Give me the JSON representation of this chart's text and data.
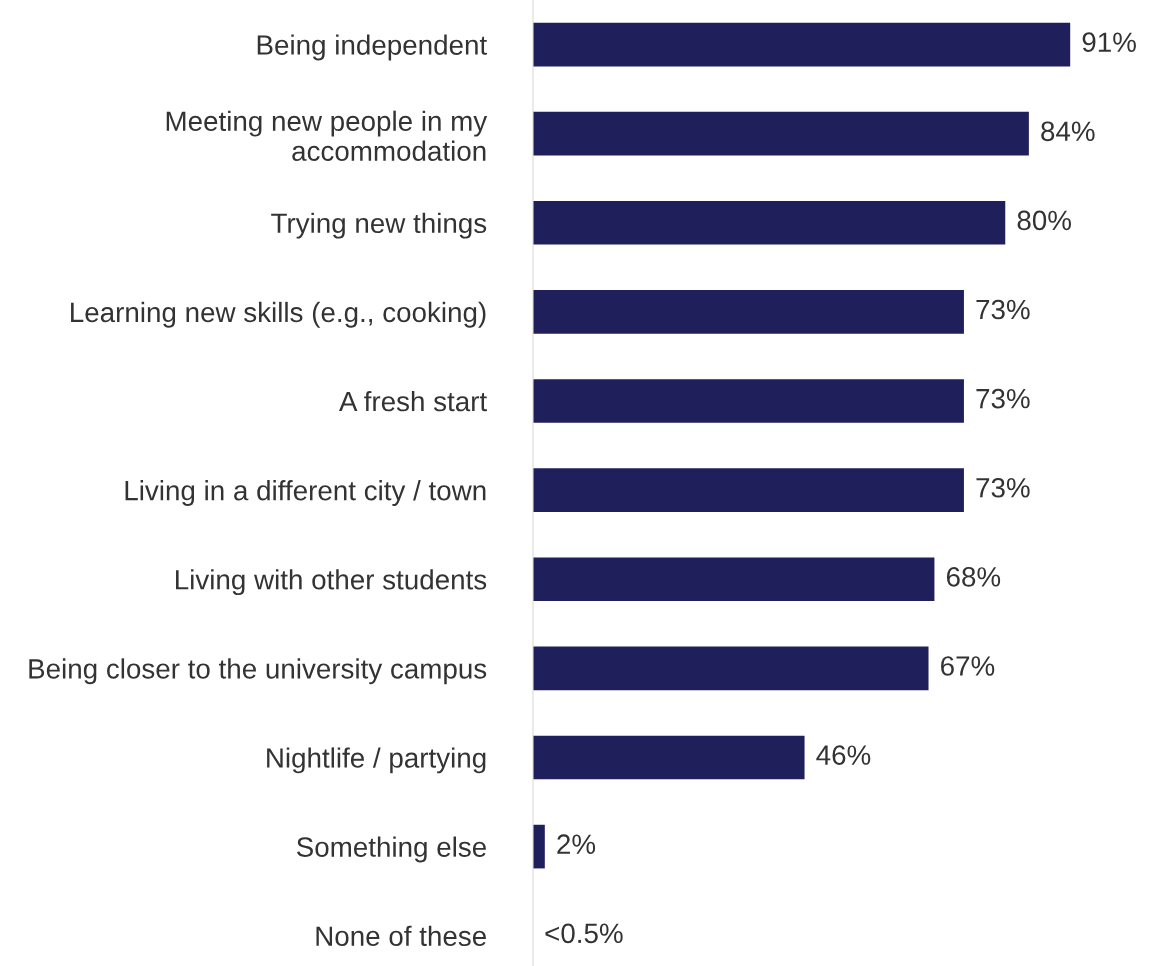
{
  "chart_data": {
    "type": "bar",
    "orientation": "horizontal",
    "categories": [
      "Being independent",
      "Meeting new people in my accommodation",
      "Trying new things",
      "Learning new skills (e.g., cooking)",
      "A fresh start",
      "Living in a different city / town",
      "Living with other students",
      "Being closer to the university campus",
      "Nightlife / partying",
      "Something else",
      "None of these"
    ],
    "values": [
      91,
      84,
      80,
      73,
      73,
      73,
      68,
      67,
      46,
      2,
      0
    ],
    "value_labels": [
      "91%",
      "84%",
      "80%",
      "73%",
      "73%",
      "73%",
      "68%",
      "67%",
      "46%",
      "2%",
      "<0.5%"
    ],
    "color": "#1f1f5c",
    "tick_labels": "y",
    "grid": false,
    "legend": false
  }
}
